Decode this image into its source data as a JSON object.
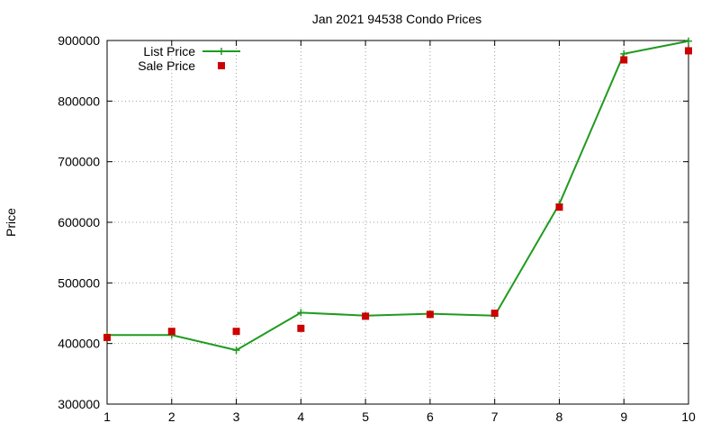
{
  "chart_data": {
    "type": "line",
    "title": "Jan 2021 94538 Condo Prices",
    "xlabel": "",
    "ylabel": "Price",
    "xlim": [
      1,
      10
    ],
    "ylim": [
      300000,
      900000
    ],
    "x_ticks": [
      1,
      2,
      3,
      4,
      5,
      6,
      7,
      8,
      9,
      10
    ],
    "y_ticks": [
      300000,
      400000,
      500000,
      600000,
      700000,
      800000,
      900000
    ],
    "grid": true,
    "legend_position": "top-left",
    "series": [
      {
        "name": "List Price",
        "style": "line+cross",
        "color": "#1f9b1f",
        "x": [
          1,
          2,
          3,
          4,
          5,
          6,
          7,
          8,
          9,
          10
        ],
        "values": [
          414000,
          414000,
          389000,
          451000,
          446000,
          449000,
          446000,
          630000,
          878000,
          899000
        ]
      },
      {
        "name": "Sale Price",
        "style": "square",
        "color": "#cc0000",
        "x": [
          1,
          2,
          3,
          4,
          5,
          6,
          7,
          8,
          9,
          10
        ],
        "values": [
          410000,
          420000,
          420000,
          425000,
          445000,
          448000,
          450000,
          625000,
          868000,
          883000
        ]
      }
    ]
  }
}
